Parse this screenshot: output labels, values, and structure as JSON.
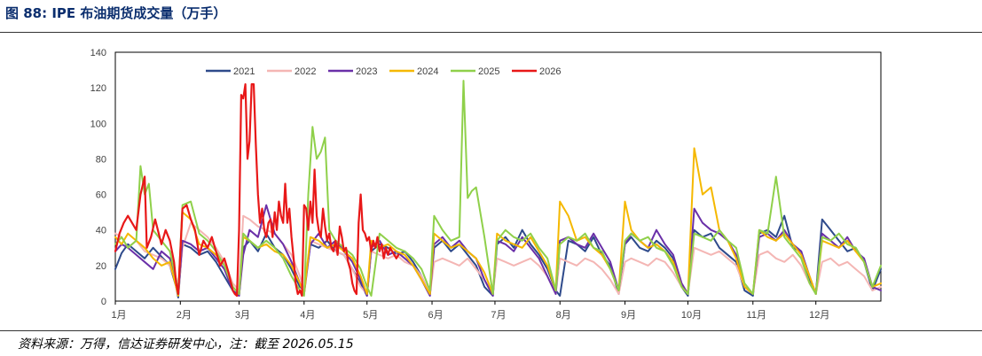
{
  "header": {
    "title": "图 88:  IPE 布油期货成交量（万手）"
  },
  "footer": {
    "source": "资料来源：万得，信达证券研发中心，注：截至 2026.05.15"
  },
  "chart_data": {
    "type": "line",
    "ylim": [
      0,
      140
    ],
    "yticks": [
      0,
      20,
      40,
      60,
      80,
      100,
      120,
      140
    ],
    "xlim": [
      0,
      365
    ],
    "xticks": [
      {
        "label": "1月",
        "day": 0
      },
      {
        "label": "2月",
        "day": 31
      },
      {
        "label": "3月",
        "day": 59
      },
      {
        "label": "4月",
        "day": 90
      },
      {
        "label": "5月",
        "day": 120
      },
      {
        "label": "6月",
        "day": 151
      },
      {
        "label": "7月",
        "day": 181
      },
      {
        "label": "8月",
        "day": 212
      },
      {
        "label": "9月",
        "day": 243
      },
      {
        "label": "10月",
        "day": 273
      },
      {
        "label": "11月",
        "day": 304
      },
      {
        "label": "12月",
        "day": 334
      }
    ],
    "legend_position": "top",
    "series": [
      {
        "name": "2021",
        "color": "#2e4a8b",
        "width": 2,
        "x": [
          0,
          3,
          6,
          10,
          14,
          18,
          22,
          26,
          29,
          30,
          32,
          36,
          40,
          44,
          48,
          52,
          56,
          59,
          61,
          64,
          68,
          72,
          76,
          80,
          84,
          88,
          90,
          93,
          97,
          101,
          105,
          109,
          113,
          117,
          120,
          122,
          126,
          130,
          134,
          138,
          142,
          146,
          150,
          152,
          156,
          160,
          164,
          168,
          172,
          176,
          180,
          182,
          186,
          190,
          194,
          198,
          202,
          206,
          210,
          212,
          216,
          220,
          224,
          228,
          232,
          236,
          240,
          243,
          246,
          250,
          254,
          258,
          262,
          266,
          270,
          273,
          276,
          280,
          284,
          288,
          292,
          296,
          300,
          304,
          307,
          311,
          315,
          319,
          323,
          327,
          331,
          334,
          337,
          341,
          345,
          349,
          353,
          357,
          361,
          365
        ],
        "y": [
          18,
          27,
          32,
          28,
          24,
          30,
          25,
          20,
          8,
          2,
          32,
          30,
          26,
          28,
          22,
          14,
          6,
          3,
          30,
          34,
          28,
          38,
          30,
          26,
          18,
          8,
          6,
          32,
          30,
          34,
          28,
          26,
          18,
          10,
          3,
          28,
          32,
          30,
          26,
          28,
          22,
          14,
          4,
          30,
          34,
          28,
          32,
          26,
          20,
          8,
          3,
          32,
          36,
          30,
          40,
          32,
          26,
          18,
          6,
          3,
          34,
          32,
          28,
          36,
          26,
          20,
          4,
          32,
          36,
          30,
          28,
          34,
          30,
          24,
          8,
          3,
          40,
          36,
          38,
          30,
          26,
          22,
          6,
          3,
          38,
          40,
          36,
          48,
          30,
          28,
          12,
          4,
          46,
          40,
          34,
          28,
          30,
          22,
          6,
          18
        ]
      },
      {
        "name": "2022",
        "color": "#f4b6b4",
        "width": 2,
        "x": [
          0,
          3,
          6,
          10,
          14,
          18,
          22,
          26,
          29,
          30,
          32,
          36,
          40,
          44,
          48,
          52,
          56,
          59,
          61,
          64,
          68,
          72,
          76,
          80,
          84,
          88,
          90,
          93,
          97,
          101,
          105,
          109,
          113,
          117,
          120,
          122,
          126,
          130,
          134,
          138,
          142,
          146,
          150,
          152,
          156,
          160,
          164,
          168,
          172,
          176,
          180,
          182,
          186,
          190,
          194,
          198,
          202,
          206,
          210,
          212,
          216,
          220,
          224,
          228,
          232,
          236,
          240,
          243,
          246,
          250,
          254,
          258,
          262,
          266,
          270,
          273,
          276,
          280,
          284,
          288,
          292,
          296,
          300,
          304,
          307,
          311,
          315,
          319,
          323,
          327,
          331,
          334,
          337,
          341,
          345,
          349,
          353,
          357,
          361,
          365
        ],
        "y": [
          38,
          36,
          30,
          34,
          28,
          26,
          24,
          20,
          10,
          4,
          30,
          44,
          40,
          36,
          30,
          22,
          10,
          6,
          48,
          46,
          42,
          40,
          38,
          32,
          26,
          14,
          6,
          34,
          32,
          30,
          28,
          26,
          18,
          8,
          4,
          28,
          26,
          24,
          26,
          22,
          20,
          14,
          4,
          22,
          24,
          22,
          20,
          24,
          18,
          12,
          4,
          24,
          22,
          20,
          22,
          24,
          20,
          14,
          4,
          24,
          22,
          20,
          24,
          22,
          18,
          12,
          4,
          22,
          24,
          22,
          20,
          24,
          22,
          16,
          8,
          4,
          30,
          28,
          26,
          28,
          24,
          20,
          8,
          4,
          26,
          28,
          24,
          22,
          26,
          20,
          10,
          4,
          22,
          24,
          20,
          22,
          18,
          14,
          6,
          8
        ]
      },
      {
        "name": "2023",
        "color": "#6a30a8",
        "width": 2,
        "x": [
          0,
          3,
          6,
          10,
          14,
          18,
          22,
          26,
          29,
          30,
          32,
          36,
          40,
          44,
          48,
          52,
          56,
          59,
          61,
          64,
          68,
          72,
          76,
          80,
          84,
          88,
          90,
          93,
          97,
          101,
          105,
          109,
          113,
          117,
          120,
          122,
          126,
          130,
          134,
          138,
          142,
          146,
          150,
          152,
          156,
          160,
          164,
          168,
          172,
          176,
          180,
          182,
          186,
          190,
          194,
          198,
          202,
          206,
          210,
          212,
          216,
          220,
          224,
          228,
          232,
          236,
          240,
          243,
          246,
          250,
          254,
          258,
          262,
          266,
          270,
          273,
          276,
          280,
          284,
          288,
          292,
          296,
          300,
          304,
          307,
          311,
          315,
          319,
          323,
          327,
          331,
          334,
          337,
          341,
          345,
          349,
          353,
          357,
          361,
          365
        ],
        "y": [
          28,
          32,
          30,
          26,
          22,
          18,
          28,
          24,
          12,
          4,
          34,
          32,
          28,
          30,
          24,
          18,
          6,
          3,
          26,
          40,
          36,
          54,
          38,
          32,
          22,
          10,
          4,
          32,
          38,
          30,
          34,
          28,
          22,
          12,
          3,
          30,
          34,
          26,
          28,
          24,
          20,
          12,
          3,
          32,
          36,
          30,
          34,
          28,
          24,
          12,
          3,
          34,
          32,
          28,
          36,
          30,
          24,
          14,
          4,
          34,
          36,
          32,
          30,
          38,
          30,
          22,
          6,
          32,
          38,
          34,
          30,
          40,
          32,
          26,
          10,
          4,
          52,
          44,
          40,
          38,
          34,
          26,
          8,
          4,
          36,
          38,
          34,
          40,
          32,
          28,
          14,
          4,
          38,
          34,
          30,
          36,
          28,
          24,
          8,
          6
        ]
      },
      {
        "name": "2024",
        "color": "#f5b800",
        "width": 2,
        "x": [
          0,
          3,
          6,
          10,
          14,
          18,
          22,
          26,
          29,
          30,
          32,
          36,
          40,
          44,
          48,
          52,
          56,
          59,
          61,
          64,
          68,
          72,
          76,
          80,
          84,
          88,
          90,
          93,
          97,
          101,
          105,
          109,
          113,
          117,
          120,
          122,
          126,
          130,
          134,
          138,
          142,
          146,
          150,
          152,
          156,
          160,
          164,
          168,
          172,
          176,
          180,
          182,
          186,
          190,
          194,
          198,
          202,
          206,
          210,
          212,
          216,
          220,
          224,
          228,
          232,
          236,
          240,
          243,
          246,
          250,
          254,
          258,
          262,
          266,
          270,
          273,
          276,
          280,
          284,
          288,
          292,
          296,
          300,
          304,
          307,
          311,
          315,
          319,
          323,
          327,
          331,
          334,
          337,
          341,
          345,
          349,
          353,
          357,
          361,
          365
        ],
        "y": [
          36,
          32,
          38,
          34,
          30,
          24,
          20,
          22,
          8,
          3,
          50,
          46,
          32,
          30,
          26,
          20,
          8,
          4,
          36,
          34,
          30,
          32,
          28,
          26,
          20,
          10,
          4,
          36,
          34,
          30,
          32,
          28,
          24,
          14,
          4,
          34,
          30,
          32,
          28,
          26,
          20,
          12,
          4,
          38,
          34,
          30,
          32,
          28,
          24,
          16,
          4,
          38,
          34,
          32,
          30,
          36,
          28,
          20,
          6,
          56,
          48,
          34,
          36,
          30,
          26,
          18,
          6,
          56,
          40,
          34,
          30,
          32,
          28,
          22,
          8,
          4,
          86,
          60,
          64,
          40,
          34,
          24,
          8,
          4,
          40,
          36,
          34,
          38,
          32,
          26,
          14,
          4,
          34,
          32,
          30,
          34,
          28,
          22,
          8,
          10
        ]
      },
      {
        "name": "2025",
        "color": "#8fd04a",
        "width": 2,
        "x": [
          0,
          3,
          6,
          10,
          12,
          14,
          16,
          18,
          22,
          26,
          29,
          30,
          32,
          36,
          40,
          44,
          48,
          52,
          56,
          59,
          61,
          64,
          68,
          72,
          76,
          80,
          84,
          88,
          90,
          92,
          94,
          96,
          98,
          100,
          102,
          105,
          109,
          113,
          117,
          120,
          122,
          126,
          130,
          134,
          138,
          142,
          146,
          150,
          152,
          156,
          160,
          164,
          166,
          168,
          170,
          172,
          176,
          180,
          182,
          186,
          190,
          194,
          198,
          202,
          206,
          210,
          212,
          216,
          220,
          224,
          228,
          232,
          236,
          240,
          243,
          246,
          250,
          254,
          258,
          262,
          266,
          270,
          273,
          276,
          280,
          284,
          288,
          292,
          296,
          300,
          304,
          307,
          311,
          315,
          319,
          323,
          327,
          331,
          334,
          337,
          341,
          345,
          349,
          353,
          357,
          361,
          365
        ],
        "y": [
          32,
          36,
          30,
          34,
          76,
          60,
          66,
          40,
          34,
          28,
          12,
          4,
          54,
          56,
          38,
          34,
          28,
          20,
          8,
          4,
          38,
          34,
          30,
          34,
          30,
          24,
          14,
          6,
          3,
          60,
          98,
          80,
          84,
          92,
          40,
          34,
          30,
          26,
          18,
          8,
          3,
          38,
          34,
          30,
          28,
          24,
          18,
          6,
          48,
          40,
          34,
          36,
          124,
          58,
          62,
          64,
          36,
          4,
          34,
          40,
          36,
          34,
          38,
          30,
          24,
          6,
          32,
          36,
          34,
          38,
          30,
          28,
          18,
          6,
          34,
          38,
          34,
          36,
          30,
          28,
          20,
          8,
          4,
          38,
          36,
          34,
          40,
          34,
          30,
          10,
          4,
          40,
          38,
          70,
          36,
          30,
          24,
          10,
          4,
          36,
          34,
          38,
          32,
          30,
          22,
          8,
          20
        ]
      },
      {
        "name": "2026",
        "color": "#e81818",
        "width": 2.2,
        "x": [
          0,
          2,
          4,
          6,
          8,
          10,
          12,
          14,
          15,
          17,
          19,
          22,
          24,
          26,
          28,
          29,
          30,
          32,
          34,
          36,
          38,
          40,
          42,
          44,
          46,
          48,
          50,
          52,
          54,
          56,
          57,
          58,
          59,
          60,
          61,
          62,
          63,
          64,
          65,
          66,
          67,
          68,
          69,
          70,
          71,
          72,
          73,
          74,
          75,
          76,
          77,
          78,
          79,
          80,
          81,
          82,
          83,
          84,
          85,
          86,
          87,
          88,
          89,
          90,
          91,
          92,
          93,
          94,
          95,
          96,
          97,
          98,
          99,
          100,
          101,
          102,
          103,
          104,
          105,
          106,
          107,
          108,
          109,
          110,
          111,
          112,
          113,
          114,
          115,
          116,
          117,
          118,
          119,
          120,
          121,
          122,
          123,
          124,
          125,
          126,
          127,
          128,
          129,
          130,
          131,
          132,
          133,
          134,
          135
        ],
        "y": [
          28,
          38,
          44,
          48,
          44,
          40,
          60,
          70,
          30,
          36,
          46,
          32,
          40,
          34,
          22,
          10,
          4,
          52,
          54,
          46,
          40,
          26,
          34,
          30,
          36,
          28,
          20,
          24,
          16,
          6,
          4,
          3,
          40,
          116,
          114,
          122,
          80,
          90,
          122,
          122,
          88,
          60,
          44,
          52,
          40,
          36,
          44,
          46,
          36,
          50,
          40,
          56,
          48,
          44,
          66,
          44,
          52,
          36,
          24,
          10,
          4,
          6,
          3,
          54,
          52,
          40,
          56,
          44,
          74,
          48,
          40,
          36,
          52,
          42,
          34,
          38,
          30,
          28,
          34,
          26,
          42,
          36,
          28,
          30,
          22,
          18,
          10,
          6,
          4,
          44,
          60,
          40,
          38,
          34,
          36,
          28,
          34,
          30,
          36,
          28,
          32,
          24,
          30,
          26,
          30,
          28,
          26,
          24,
          26
        ]
      }
    ]
  }
}
